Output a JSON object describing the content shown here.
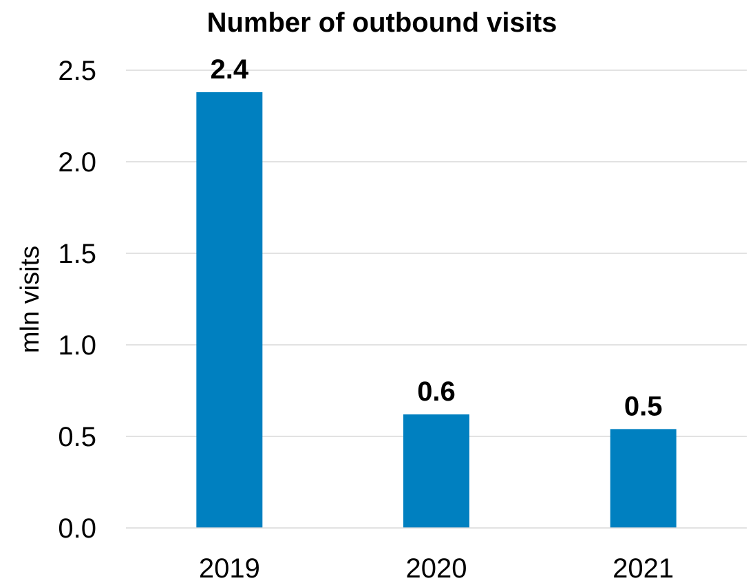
{
  "chart_data": {
    "type": "bar",
    "title": "Number of outbound visits",
    "xlabel": "",
    "ylabel": "mln visits",
    "categories": [
      "2019",
      "2020",
      "2021"
    ],
    "values": [
      2.38,
      0.62,
      0.54
    ],
    "data_labels": [
      "2.4",
      "0.6",
      "0.5"
    ],
    "ylim": [
      0,
      2.5
    ],
    "yticks": [
      0.0,
      0.5,
      1.0,
      1.5,
      2.0,
      2.5
    ],
    "ytick_labels": [
      "0.0",
      "0.5",
      "1.0",
      "1.5",
      "2.0",
      "2.5"
    ],
    "grid": true,
    "legend": "none",
    "bar_color": "#0080c0"
  }
}
